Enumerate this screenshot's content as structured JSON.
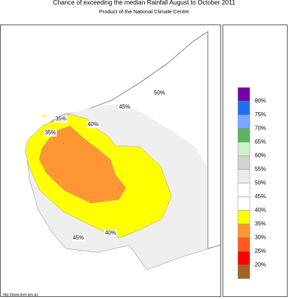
{
  "header": {
    "title": "Chance of exceeding the median Rainfall August to October 2011",
    "subtitle": "Product of the National Climate Centre"
  },
  "contour_labels": [
    "50%",
    "45%",
    "35%",
    "40%",
    "35%",
    "40%",
    "45%"
  ],
  "legend": {
    "labels": [
      "80%",
      "75%",
      "70%",
      "65%",
      "60%",
      "55%",
      "50%",
      "45%",
      "40%",
      "35%",
      "30%",
      "25%",
      "20%"
    ],
    "colors": [
      "#7800a8",
      "#1e6ef0",
      "#78a8ff",
      "#5ab45a",
      "#c8f5c8",
      "#d2d2d2",
      "#ececec",
      "#ffffff",
      "#ffffff",
      "#ffff00",
      "#ff9632",
      "#ff5a1e",
      "#ff0000",
      "#a0641e"
    ]
  },
  "footer": {
    "url": "http://www.bom.gov.au"
  }
}
